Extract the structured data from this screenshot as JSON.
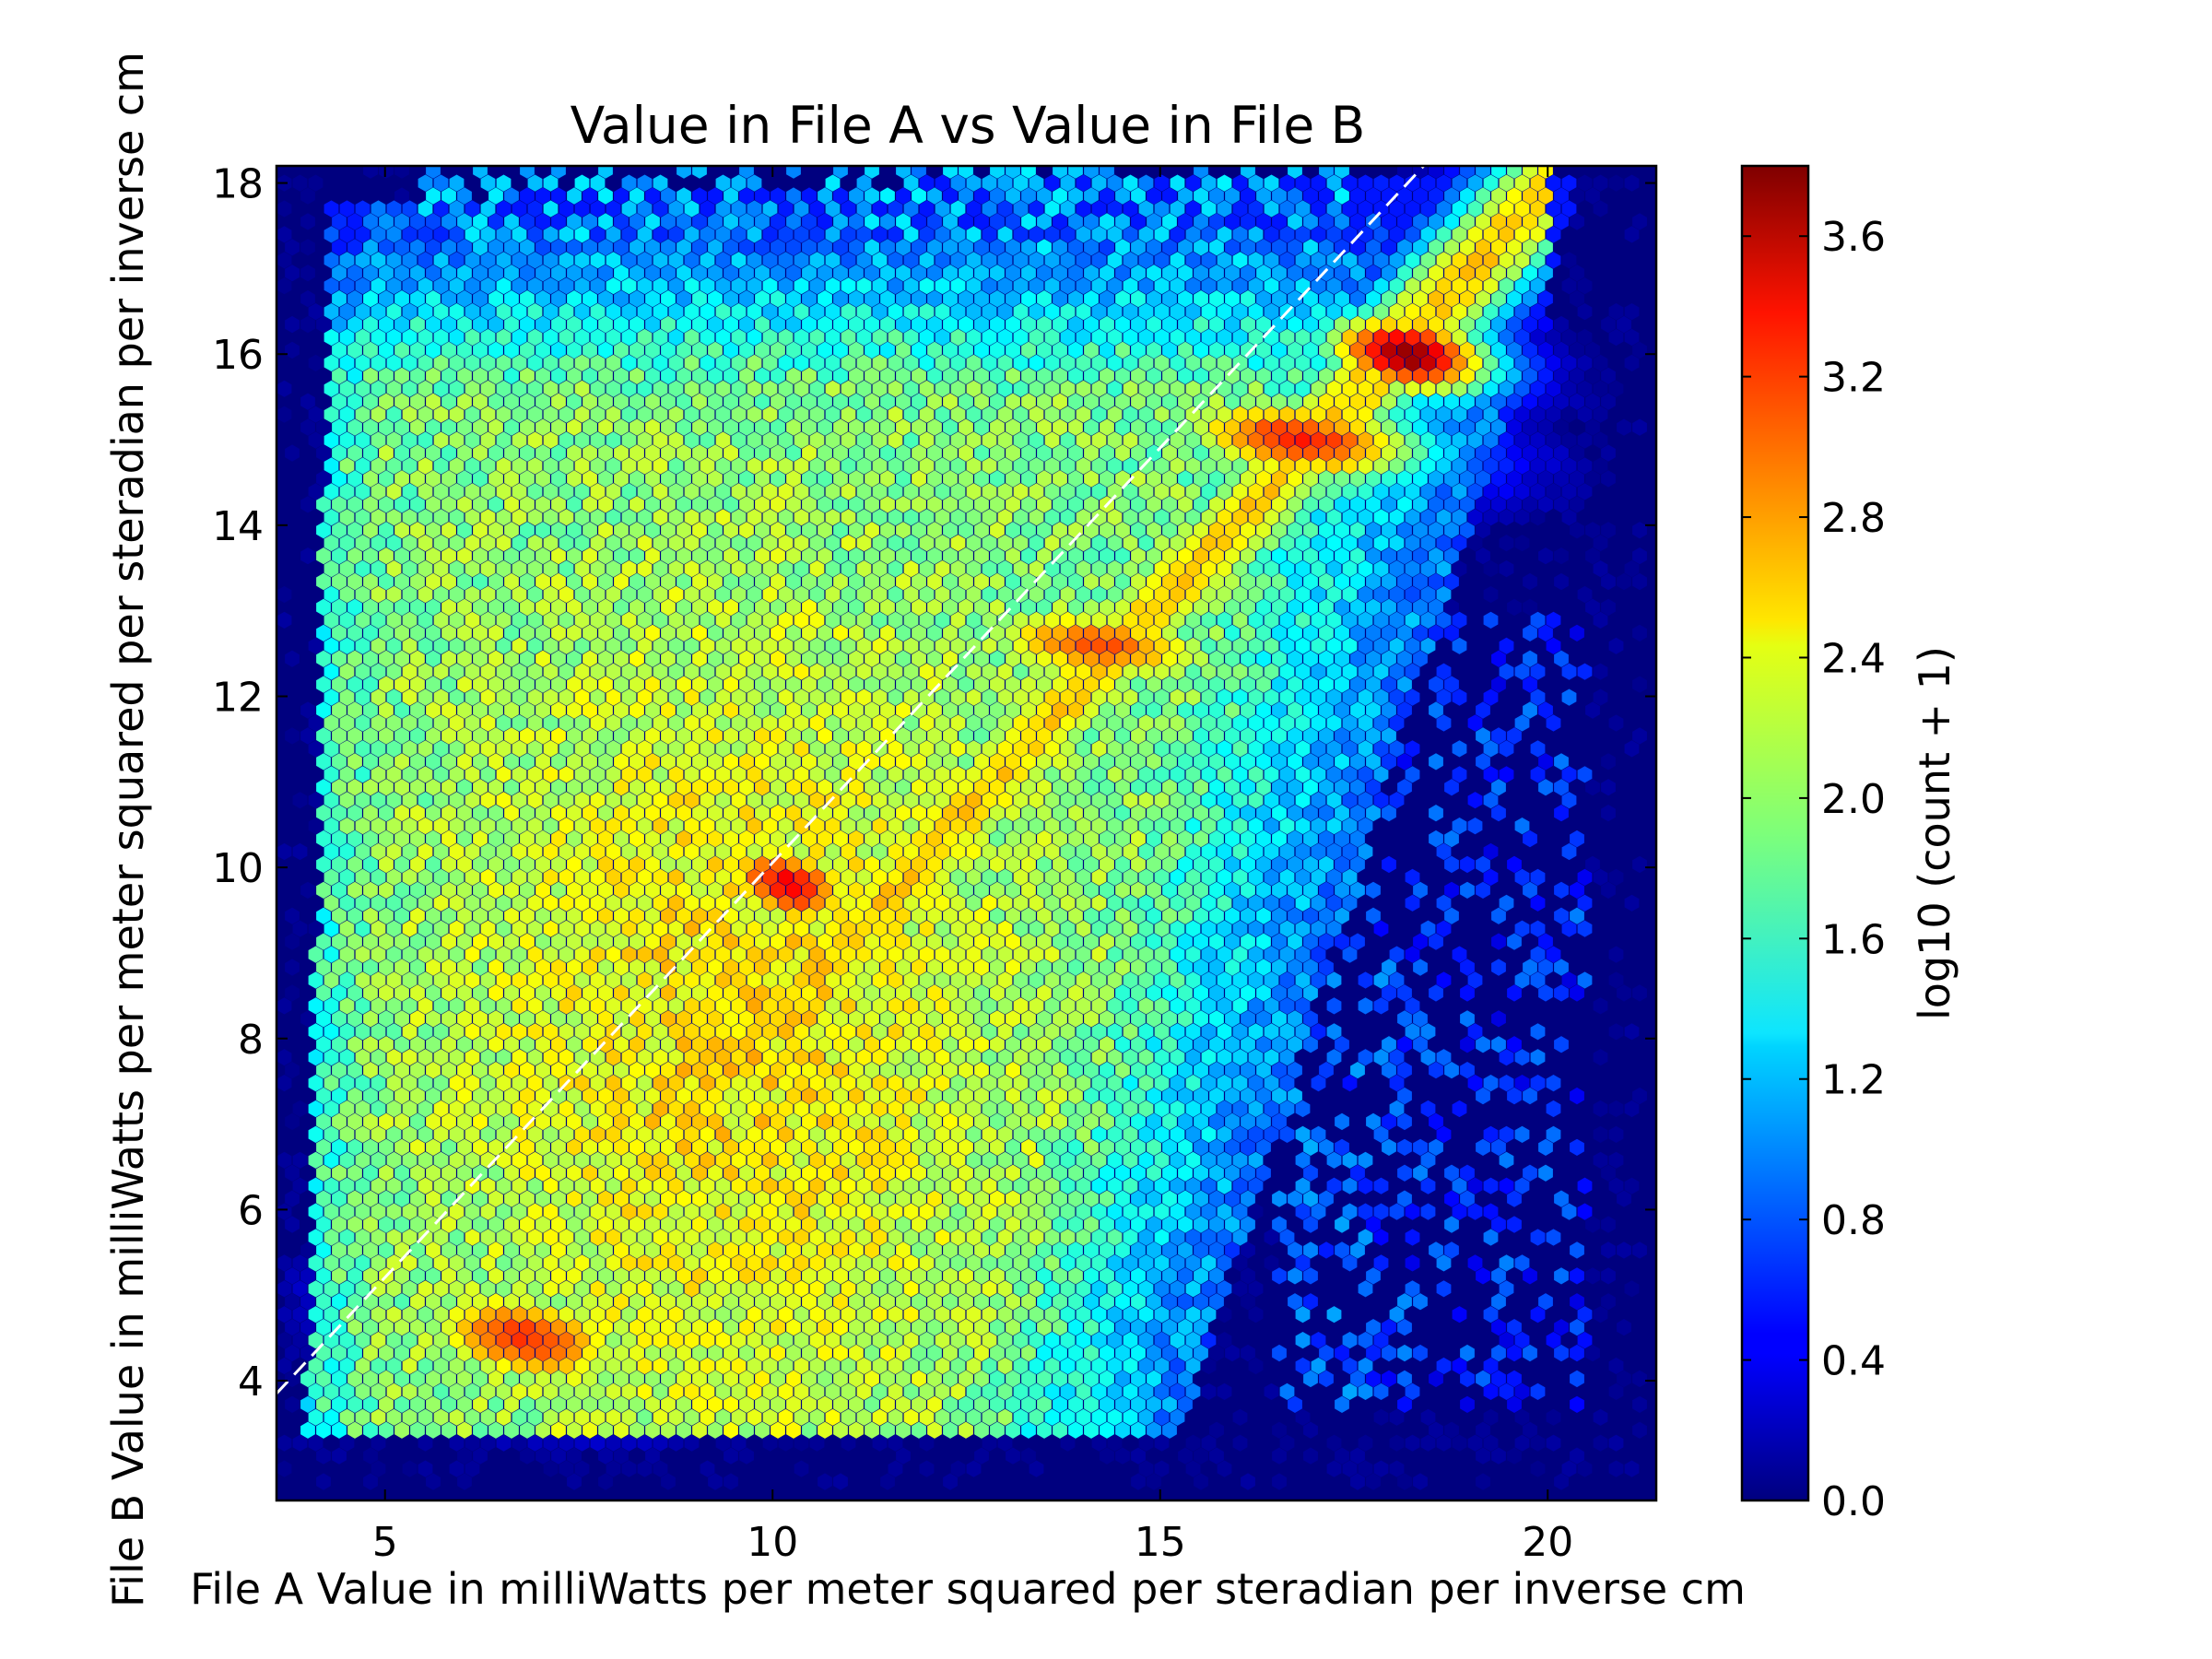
{
  "chart_data": {
    "type": "hexbin",
    "title": "Value in File A vs Value in File B",
    "xlabel": "File A Value in milliWatts per meter squared per steradian per inverse cm",
    "ylabel": "File B Value in milliWatts per meter squared per steradian per inverse cm",
    "xlim": [
      3.6,
      21.4
    ],
    "ylim": [
      2.6,
      18.2
    ],
    "x_ticks": [
      5,
      10,
      15,
      20
    ],
    "x_tick_labels": [
      "5",
      "10",
      "15",
      "20"
    ],
    "y_ticks": [
      4,
      6,
      8,
      10,
      12,
      14,
      16,
      18
    ],
    "y_tick_labels": [
      "4",
      "6",
      "8",
      "10",
      "12",
      "14",
      "16",
      "18"
    ],
    "colorbar": {
      "label": "log10 (count + 1)",
      "colormap": "jet",
      "range": [
        0.0,
        3.8
      ],
      "ticks": [
        0.0,
        0.4,
        0.8,
        1.2,
        1.6,
        2.0,
        2.4,
        2.8,
        3.2,
        3.6
      ],
      "tick_labels": [
        "0.0",
        "0.4",
        "0.8",
        "1.2",
        "1.6",
        "2.0",
        "2.4",
        "2.8",
        "3.2",
        "3.6"
      ]
    },
    "reference_line": {
      "style": "dashed",
      "color": "#ffffff",
      "from": [
        3.6,
        3.85
      ],
      "to": [
        18.4,
        18.2
      ]
    },
    "background_color": "#00007f",
    "density_regions": [
      {
        "name": "peak-upper",
        "center": [
          18.2,
          16.0
        ],
        "sx": 1.0,
        "sy": 0.45,
        "value": 3.75
      },
      {
        "name": "ridge-upper",
        "center": [
          16.8,
          15.0
        ],
        "sx": 1.6,
        "sy": 0.5,
        "value": 3.2
      },
      {
        "name": "ridge-mid",
        "center": [
          14.2,
          12.6
        ],
        "sx": 1.6,
        "sy": 0.45,
        "value": 3.0
      },
      {
        "name": "peak-mid",
        "center": [
          10.2,
          9.8
        ],
        "sx": 0.9,
        "sy": 0.5,
        "value": 3.35
      },
      {
        "name": "peak-lower",
        "center": [
          6.8,
          4.5
        ],
        "sx": 1.4,
        "sy": 0.6,
        "value": 3.15
      }
    ]
  }
}
